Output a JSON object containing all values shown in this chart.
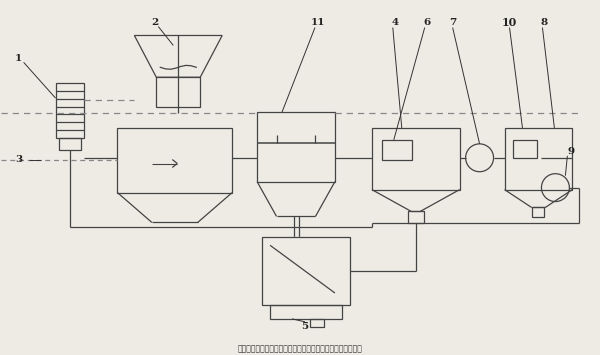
{
  "bg_color": "#eeebe5",
  "line_color": "#444444",
  "dashed_color": "#888888",
  "figsize": [
    6.0,
    3.55
  ],
  "dpi": 100,
  "caption": "利用工业废水作为冷却循环及生化补水的工艺系统的制作方法"
}
